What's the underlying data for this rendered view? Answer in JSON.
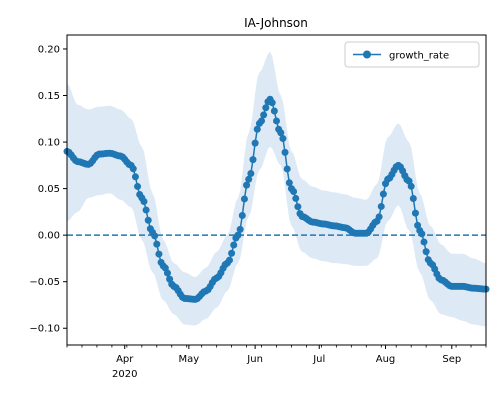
{
  "chart_data": {
    "type": "line",
    "title": "IA-Johnson",
    "xlabel": "",
    "ylabel": "",
    "x_range": [
      "2020-03-05",
      "2020-09-17"
    ],
    "ylim": [
      -0.118,
      0.215
    ],
    "x_ticks": [
      {
        "date": "2020-04-01",
        "label": "Apr",
        "sublabel": "2020"
      },
      {
        "date": "2020-05-01",
        "label": "May",
        "sublabel": ""
      },
      {
        "date": "2020-06-01",
        "label": "Jun",
        "sublabel": ""
      },
      {
        "date": "2020-07-01",
        "label": "Jul",
        "sublabel": ""
      },
      {
        "date": "2020-08-01",
        "label": "Aug",
        "sublabel": ""
      },
      {
        "date": "2020-09-01",
        "label": "Sep",
        "sublabel": ""
      }
    ],
    "y_ticks": [
      -0.1,
      -0.05,
      0.0,
      0.05,
      0.1,
      0.15,
      0.2
    ],
    "y_tick_labels": [
      "−0.10",
      "−0.05",
      "0.00",
      "0.05",
      "0.10",
      "0.15",
      "0.20"
    ],
    "grid": false,
    "legend": {
      "placement": "top-right",
      "entries": [
        "growth_rate"
      ]
    },
    "reference_line": {
      "y": 0.0,
      "style": "dashed"
    },
    "colors": {
      "line": "#1f77b4",
      "band": "#dde9f5"
    },
    "series": [
      {
        "name": "growth_rate",
        "x": [
          "2020-03-05",
          "2020-03-10",
          "2020-03-15",
          "2020-03-20",
          "2020-03-25",
          "2020-03-30",
          "2020-04-04",
          "2020-04-09",
          "2020-04-14",
          "2020-04-19",
          "2020-04-24",
          "2020-04-29",
          "2020-05-04",
          "2020-05-09",
          "2020-05-14",
          "2020-05-19",
          "2020-05-24",
          "2020-05-29",
          "2020-06-03",
          "2020-06-08",
          "2020-06-13",
          "2020-06-18",
          "2020-06-23",
          "2020-06-28",
          "2020-07-03",
          "2020-07-08",
          "2020-07-13",
          "2020-07-18",
          "2020-07-23",
          "2020-07-28",
          "2020-08-02",
          "2020-08-07",
          "2020-08-12",
          "2020-08-17",
          "2020-08-22",
          "2020-08-27",
          "2020-09-01",
          "2020-09-06",
          "2020-09-11",
          "2020-09-17"
        ],
        "values": [
          0.09,
          0.079,
          0.076,
          0.087,
          0.088,
          0.085,
          0.075,
          0.04,
          0.003,
          -0.033,
          -0.055,
          -0.068,
          -0.069,
          -0.06,
          -0.046,
          -0.03,
          0.0,
          0.06,
          0.12,
          0.146,
          0.11,
          0.05,
          0.02,
          0.014,
          0.012,
          0.01,
          0.008,
          0.002,
          0.002,
          0.015,
          0.06,
          0.075,
          0.058,
          0.005,
          -0.03,
          -0.048,
          -0.055,
          -0.055,
          -0.057,
          -0.058
        ],
        "lower": [
          0.015,
          0.025,
          0.04,
          0.043,
          0.045,
          0.038,
          0.03,
          -0.005,
          -0.04,
          -0.07,
          -0.085,
          -0.096,
          -0.097,
          -0.09,
          -0.078,
          -0.06,
          -0.03,
          0.02,
          0.07,
          0.095,
          0.075,
          0.01,
          -0.018,
          -0.025,
          -0.028,
          -0.03,
          -0.031,
          -0.033,
          -0.033,
          -0.025,
          0.015,
          0.032,
          0.005,
          -0.04,
          -0.07,
          -0.085,
          -0.088,
          -0.092,
          -0.096,
          -0.098
        ],
        "upper": [
          0.163,
          0.14,
          0.135,
          0.138,
          0.139,
          0.135,
          0.125,
          0.095,
          0.045,
          -0.005,
          -0.03,
          -0.04,
          -0.045,
          -0.035,
          -0.018,
          0.0,
          0.04,
          0.11,
          0.175,
          0.197,
          0.15,
          0.09,
          0.06,
          0.052,
          0.048,
          0.046,
          0.044,
          0.04,
          0.038,
          0.055,
          0.105,
          0.12,
          0.1,
          0.045,
          0.01,
          -0.01,
          -0.02,
          -0.02,
          -0.025,
          -0.03
        ]
      }
    ]
  }
}
